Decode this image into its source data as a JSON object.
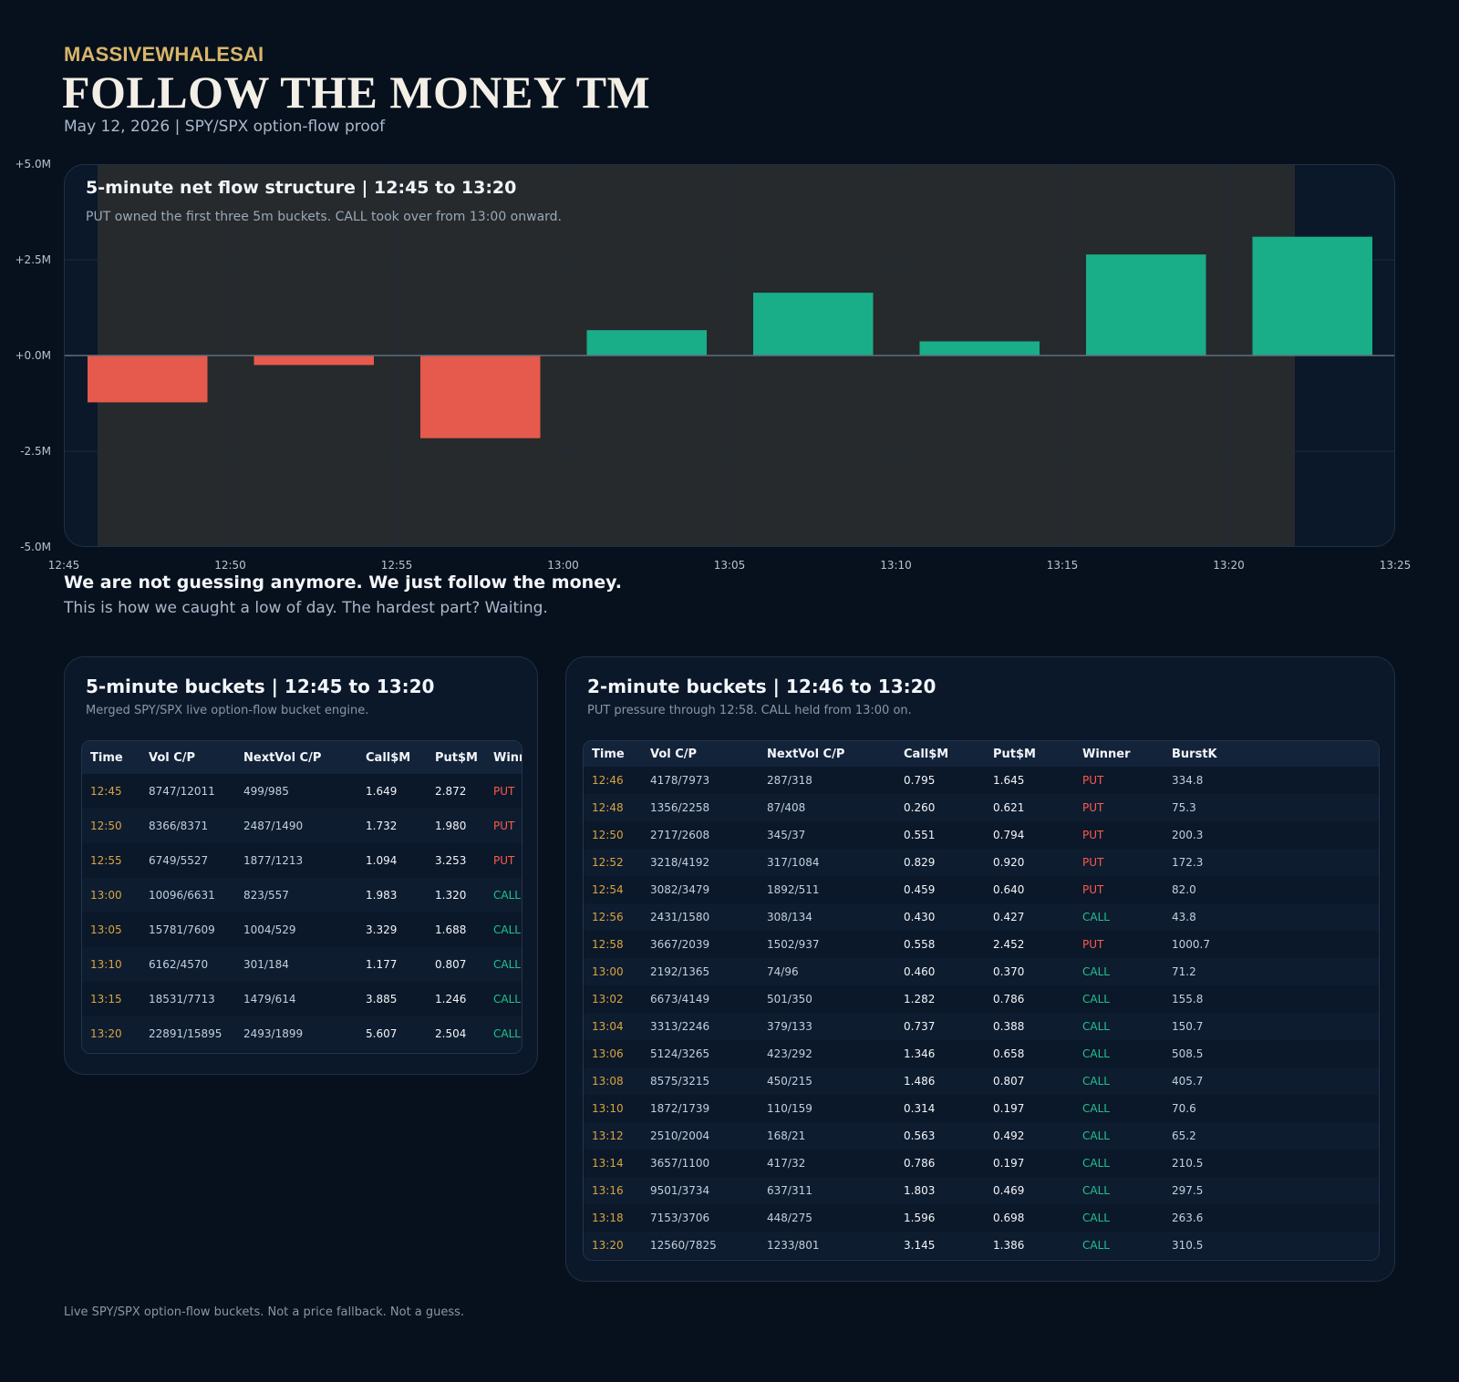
{
  "header": {
    "brand": "MASSIVEWHALESAI",
    "title": "FOLLOW THE MONEY TM",
    "subtitle": "May 12, 2026 | SPY/SPX option-flow proof"
  },
  "chart_panel": {
    "title": "5-minute net flow structure | 12:45 to 13:20",
    "subtitle": "PUT owned the first three 5m buckets. CALL took over from 13:00 onward."
  },
  "chart_data": {
    "type": "bar",
    "categories": [
      "12:45",
      "12:50",
      "12:55",
      "13:00",
      "13:05",
      "13:10",
      "13:15",
      "13:20"
    ],
    "values": [
      -1.223,
      -0.248,
      -2.159,
      0.663,
      1.641,
      0.37,
      2.639,
      3.103
    ],
    "unit": "M",
    "ylim": [
      -5.0,
      5.0
    ],
    "y_ticks": [
      "+5.0M",
      "+2.5M",
      "+0.0M",
      "-2.5M",
      "-5.0M"
    ],
    "x_ticks": [
      "12:45",
      "12:50",
      "12:55",
      "13:00",
      "13:05",
      "13:10",
      "13:15",
      "13:20",
      "13:25"
    ],
    "grid": true,
    "colors": {
      "positive": "#19ad88",
      "negative": "#e55a4c",
      "highlight": "#262a2c",
      "background": "#0b1829"
    }
  },
  "tagline": {
    "headline": "We are not guessing anymore. We just follow the money.",
    "sub": "This is how we caught a low of day. The hardest part? Waiting."
  },
  "five_min": {
    "title": "5-minute buckets | 12:45 to 13:20",
    "subtitle": "Merged SPY/SPX live option-flow bucket engine.",
    "columns": [
      "Time",
      "Vol C/P",
      "NextVol C/P",
      "Call$M",
      "Put$M",
      "Winner"
    ],
    "rows": [
      [
        "12:45",
        "8747/12011",
        "499/985",
        "1.649",
        "2.872",
        "PUT"
      ],
      [
        "12:50",
        "8366/8371",
        "2487/1490",
        "1.732",
        "1.980",
        "PUT"
      ],
      [
        "12:55",
        "6749/5527",
        "1877/1213",
        "1.094",
        "3.253",
        "PUT"
      ],
      [
        "13:00",
        "10096/6631",
        "823/557",
        "1.983",
        "1.320",
        "CALL"
      ],
      [
        "13:05",
        "15781/7609",
        "1004/529",
        "3.329",
        "1.688",
        "CALL"
      ],
      [
        "13:10",
        "6162/4570",
        "301/184",
        "1.177",
        "0.807",
        "CALL"
      ],
      [
        "13:15",
        "18531/7713",
        "1479/614",
        "3.885",
        "1.246",
        "CALL"
      ],
      [
        "13:20",
        "22891/15895",
        "2493/1899",
        "5.607",
        "2.504",
        "CALL"
      ]
    ]
  },
  "two_min": {
    "title": "2-minute buckets | 12:46 to 13:20",
    "subtitle": "PUT pressure through 12:58. CALL held from 13:00 on.",
    "columns": [
      "Time",
      "Vol C/P",
      "NextVol C/P",
      "Call$M",
      "Put$M",
      "Winner",
      "BurstK"
    ],
    "rows": [
      [
        "12:46",
        "4178/7973",
        "287/318",
        "0.795",
        "1.645",
        "PUT",
        "334.8"
      ],
      [
        "12:48",
        "1356/2258",
        "87/408",
        "0.260",
        "0.621",
        "PUT",
        "75.3"
      ],
      [
        "12:50",
        "2717/2608",
        "345/37",
        "0.551",
        "0.794",
        "PUT",
        "200.3"
      ],
      [
        "12:52",
        "3218/4192",
        "317/1084",
        "0.829",
        "0.920",
        "PUT",
        "172.3"
      ],
      [
        "12:54",
        "3082/3479",
        "1892/511",
        "0.459",
        "0.640",
        "PUT",
        "82.0"
      ],
      [
        "12:56",
        "2431/1580",
        "308/134",
        "0.430",
        "0.427",
        "CALL",
        "43.8"
      ],
      [
        "12:58",
        "3667/2039",
        "1502/937",
        "0.558",
        "2.452",
        "PUT",
        "1000.7"
      ],
      [
        "13:00",
        "2192/1365",
        "74/96",
        "0.460",
        "0.370",
        "CALL",
        "71.2"
      ],
      [
        "13:02",
        "6673/4149",
        "501/350",
        "1.282",
        "0.786",
        "CALL",
        "155.8"
      ],
      [
        "13:04",
        "3313/2246",
        "379/133",
        "0.737",
        "0.388",
        "CALL",
        "150.7"
      ],
      [
        "13:06",
        "5124/3265",
        "423/292",
        "1.346",
        "0.658",
        "CALL",
        "508.5"
      ],
      [
        "13:08",
        "8575/3215",
        "450/215",
        "1.486",
        "0.807",
        "CALL",
        "405.7"
      ],
      [
        "13:10",
        "1872/1739",
        "110/159",
        "0.314",
        "0.197",
        "CALL",
        "70.6"
      ],
      [
        "13:12",
        "2510/2004",
        "168/21",
        "0.563",
        "0.492",
        "CALL",
        "65.2"
      ],
      [
        "13:14",
        "3657/1100",
        "417/32",
        "0.786",
        "0.197",
        "CALL",
        "210.5"
      ],
      [
        "13:16",
        "9501/3734",
        "637/311",
        "1.803",
        "0.469",
        "CALL",
        "297.5"
      ],
      [
        "13:18",
        "7153/3706",
        "448/275",
        "1.596",
        "0.698",
        "CALL",
        "263.6"
      ],
      [
        "13:20",
        "12560/7825",
        "1233/801",
        "3.145",
        "1.386",
        "CALL",
        "310.5"
      ]
    ]
  },
  "footer": "Live SPY/SPX option-flow buckets. Not a price fallback. Not a guess."
}
